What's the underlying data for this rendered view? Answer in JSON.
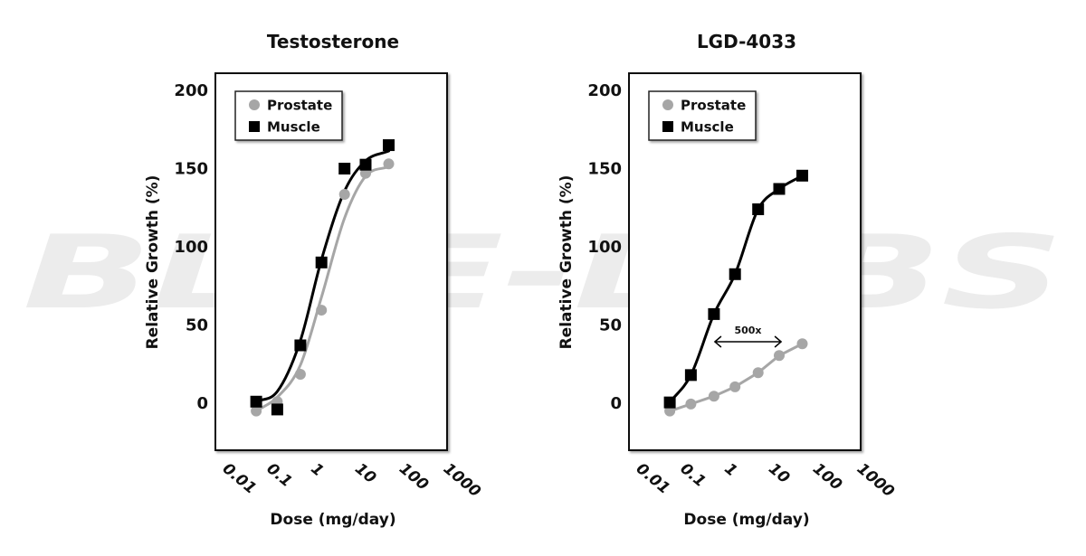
{
  "watermark": "BLUE-LABS",
  "colors": {
    "prostate": "#a6a6a6",
    "muscle": "#000000",
    "watermark": "#ececec",
    "frame": "#111111"
  },
  "chart_data": [
    {
      "type": "scatter",
      "title": "Testosterone",
      "xlabel": "Dose (mg/day)",
      "ylabel": "Relative Growth (%)",
      "xscale": "log",
      "xlim": [
        0.01,
        1000
      ],
      "ylim": [
        -30,
        210
      ],
      "xticks": [
        0.01,
        0.1,
        1,
        10,
        100,
        1000
      ],
      "xtick_labels": [
        "0.01",
        "0.1",
        "1",
        "10",
        "100",
        "1000"
      ],
      "yticks": [
        0,
        50,
        100,
        150,
        200
      ],
      "ytick_labels": [
        "0",
        "50",
        "100",
        "150",
        "200"
      ],
      "grid": false,
      "legend": {
        "placement": "top-left",
        "entries": [
          "Prostate",
          "Muscle"
        ]
      },
      "series": [
        {
          "name": "Prostate",
          "marker": "circle",
          "fit": "sigmoid",
          "x": [
            0.05,
            0.15,
            0.5,
            1.5,
            5,
            15,
            50
          ],
          "y": [
            -5,
            1,
            18.5,
            59.5,
            133.5,
            147,
            153
          ]
        },
        {
          "name": "Muscle",
          "marker": "square",
          "fit": "sigmoid",
          "x": [
            0.05,
            0.15,
            0.5,
            1.5,
            5,
            15,
            50
          ],
          "y": [
            1,
            -4,
            37,
            90,
            150,
            152.5,
            165
          ]
        }
      ],
      "annotations": []
    },
    {
      "type": "scatter",
      "title": "LGD-4033",
      "xlabel": "Dose (mg/day)",
      "ylabel": "Relative Growth (%)",
      "xscale": "log",
      "xlim": [
        0.01,
        1000
      ],
      "ylim": [
        -30,
        210
      ],
      "xticks": [
        0.01,
        0.1,
        1,
        10,
        100,
        1000
      ],
      "xtick_labels": [
        "0.01",
        "0.1",
        "1",
        "10",
        "100",
        "1000"
      ],
      "yticks": [
        0,
        50,
        100,
        150,
        200
      ],
      "ytick_labels": [
        "0",
        "50",
        "100",
        "150",
        "200"
      ],
      "grid": false,
      "legend": {
        "placement": "top-left",
        "entries": [
          "Prostate",
          "Muscle"
        ]
      },
      "series": [
        {
          "name": "Prostate",
          "marker": "circle",
          "fit": "line",
          "x": [
            0.05,
            0.15,
            0.5,
            1.5,
            5,
            15,
            50
          ],
          "y": [
            -5,
            -0.5,
            4.5,
            10.5,
            19.5,
            30.5,
            38
          ]
        },
        {
          "name": "Muscle",
          "marker": "square",
          "fit": "smooth",
          "x": [
            0.05,
            0.15,
            0.5,
            1.5,
            5,
            15,
            50
          ],
          "y": [
            0.5,
            18,
            57,
            82.5,
            124,
            137,
            145.5
          ]
        }
      ],
      "annotations": [
        {
          "text": "500x",
          "type": "double-arrow",
          "x_from": 0.5,
          "x_to": 20,
          "y": 40
        }
      ]
    }
  ]
}
